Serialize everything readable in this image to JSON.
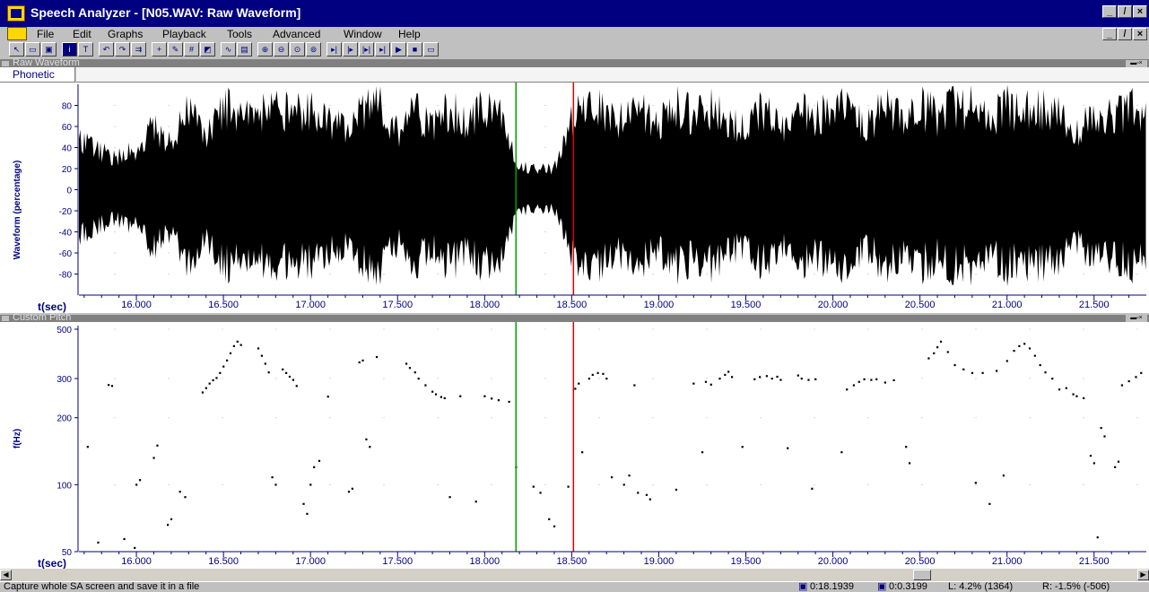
{
  "app": {
    "title": "Speech Analyzer - [N05.WAV: Raw Waveform]"
  },
  "window_controls": [
    "_",
    "̸",
    "×"
  ],
  "menu": [
    "File",
    "Edit",
    "Graphs",
    "Playback",
    "Tools",
    "Advanced",
    "Window",
    "Help"
  ],
  "toolbar_icons": [
    "arrow-tool-icon",
    "open-icon",
    "save-icon",
    "info-icon",
    "text-icon",
    "undo-icon",
    "redo-icon",
    "redo-all-icon",
    "add-segment-icon",
    "edit-segment-icon",
    "add-point-icon",
    "layout-icon",
    "graph-icon",
    "cursor-icon",
    "zoom-in-icon",
    "zoom-out-icon",
    "zoom-fit-icon",
    "zoom-all-icon",
    "play-begin-icon",
    "play-cursor-icon",
    "play-between-icon",
    "play-end-icon",
    "play-icon",
    "stop-icon",
    "loop-icon"
  ],
  "panes": {
    "waveform": {
      "title": "Raw Waveform",
      "phonetic_label": "Phonetic",
      "ylabel": "Waveform (percentage)",
      "yticks": [
        "80",
        "60",
        "40",
        "20",
        "0",
        "-20",
        "-40",
        "-60",
        "-80"
      ],
      "xlabel": "t(sec)",
      "xticks": [
        "16.000",
        "16.500",
        "17.000",
        "17.500",
        "18.000",
        "18.500",
        "19.000",
        "19.500",
        "20.000",
        "20.500",
        "21.000",
        "21.500"
      ]
    },
    "pitch": {
      "title": "Custom Pitch",
      "ylabel": "f(Hz)",
      "yticks": [
        "500",
        "300",
        "200",
        "100",
        "50"
      ],
      "xlabel": "t(sec)",
      "xticks": [
        "16.000",
        "16.500",
        "17.000",
        "17.500",
        "18.000",
        "18.500",
        "19.000",
        "19.500",
        "20.000",
        "20.500",
        "21.000",
        "21.500"
      ]
    }
  },
  "cursors": {
    "start_color": "#00a000",
    "stop_color": "#e00000"
  },
  "status": {
    "message": "Capture whole SA screen and save it in a file",
    "start_time": "0:18.1939",
    "length": "0:0.3199",
    "left": "L: 4.2%  (1364)",
    "right": "R: -1.5%  (-506)"
  },
  "chart_data": [
    {
      "type": "line",
      "title": "",
      "xlabel": "t(sec)",
      "ylabel": "Waveform (percentage)",
      "xlim": [
        15.67,
        21.8
      ],
      "ylim": [
        -100,
        100
      ],
      "grid": false,
      "cursor_times": [
        18.18,
        18.51
      ],
      "envelope": {
        "t": [
          15.7,
          15.8,
          15.9,
          16.0,
          16.1,
          16.2,
          16.3,
          16.4,
          16.5,
          16.6,
          16.7,
          16.8,
          16.9,
          17.0,
          17.1,
          17.2,
          17.3,
          17.4,
          17.5,
          17.6,
          17.7,
          17.8,
          17.9,
          18.0,
          18.1,
          18.18,
          18.3,
          18.4,
          18.51,
          18.6,
          18.7,
          18.8,
          18.9,
          19.0,
          19.1,
          19.2,
          19.3,
          19.4,
          19.5,
          19.6,
          19.7,
          19.8,
          19.9,
          20.0,
          20.1,
          20.2,
          20.3,
          20.4,
          20.5,
          20.6,
          20.7,
          20.8,
          20.9,
          21.0,
          21.1,
          21.2,
          21.3,
          21.4,
          21.5,
          21.6,
          21.7,
          21.78
        ],
        "top": [
          60,
          45,
          40,
          50,
          75,
          60,
          95,
          70,
          100,
          100,
          90,
          100,
          95,
          100,
          85,
          70,
          100,
          100,
          70,
          100,
          75,
          100,
          80,
          100,
          95,
          30,
          25,
          25,
          90,
          100,
          95,
          85,
          100,
          80,
          100,
          90,
          100,
          80,
          75,
          100,
          70,
          100,
          85,
          100,
          95,
          80,
          100,
          85,
          100,
          90,
          100,
          100,
          85,
          100,
          95,
          100,
          90,
          70,
          100,
          85,
          100,
          100
        ]
      }
    },
    {
      "type": "scatter",
      "title": "",
      "xlabel": "t(sec)",
      "ylabel": "f(Hz)",
      "xlim": [
        15.67,
        21.8
      ],
      "ylim": [
        50,
        500
      ],
      "yscale": "log",
      "grid": false,
      "points": [
        [
          15.72,
          148
        ],
        [
          15.78,
          55
        ],
        [
          15.84,
          281
        ],
        [
          15.86,
          278
        ],
        [
          15.93,
          57
        ],
        [
          15.99,
          52
        ],
        [
          16.0,
          100
        ],
        [
          16.02,
          105
        ],
        [
          16.1,
          132
        ],
        [
          16.12,
          150
        ],
        [
          16.18,
          66
        ],
        [
          16.2,
          70
        ],
        [
          16.25,
          93
        ],
        [
          16.28,
          88
        ],
        [
          16.38,
          260
        ],
        [
          16.4,
          272
        ],
        [
          16.42,
          285
        ],
        [
          16.44,
          295
        ],
        [
          16.46,
          302
        ],
        [
          16.48,
          318
        ],
        [
          16.5,
          340
        ],
        [
          16.52,
          362
        ],
        [
          16.54,
          390
        ],
        [
          16.56,
          420
        ],
        [
          16.58,
          440
        ],
        [
          16.6,
          425
        ],
        [
          16.7,
          410
        ],
        [
          16.72,
          380
        ],
        [
          16.74,
          350
        ],
        [
          16.76,
          320
        ],
        [
          16.78,
          108
        ],
        [
          16.8,
          100
        ],
        [
          16.84,
          330
        ],
        [
          16.86,
          318
        ],
        [
          16.88,
          306
        ],
        [
          16.9,
          296
        ],
        [
          16.92,
          278
        ],
        [
          16.96,
          82
        ],
        [
          16.98,
          74
        ],
        [
          17.0,
          100
        ],
        [
          17.02,
          120
        ],
        [
          17.05,
          128
        ],
        [
          17.1,
          249
        ],
        [
          17.22,
          93
        ],
        [
          17.24,
          96
        ],
        [
          17.28,
          355
        ],
        [
          17.3,
          362
        ],
        [
          17.32,
          160
        ],
        [
          17.34,
          148
        ],
        [
          17.38,
          375
        ],
        [
          17.55,
          350
        ],
        [
          17.57,
          335
        ],
        [
          17.6,
          320
        ],
        [
          17.62,
          300
        ],
        [
          17.66,
          280
        ],
        [
          17.7,
          262
        ],
        [
          17.72,
          255
        ],
        [
          17.75,
          248
        ],
        [
          17.77,
          245
        ],
        [
          17.8,
          88
        ],
        [
          17.86,
          250
        ],
        [
          17.95,
          84
        ],
        [
          18.0,
          250
        ],
        [
          18.04,
          244
        ],
        [
          18.08,
          240
        ],
        [
          18.14,
          236
        ],
        [
          18.18,
          120
        ],
        [
          18.28,
          98
        ],
        [
          18.32,
          92
        ],
        [
          18.37,
          70
        ],
        [
          18.4,
          65
        ],
        [
          18.48,
          98
        ],
        [
          18.52,
          270
        ],
        [
          18.54,
          285
        ],
        [
          18.56,
          140
        ],
        [
          18.6,
          300
        ],
        [
          18.62,
          312
        ],
        [
          18.65,
          318
        ],
        [
          18.68,
          315
        ],
        [
          18.7,
          300
        ],
        [
          18.73,
          108
        ],
        [
          18.8,
          100
        ],
        [
          18.83,
          110
        ],
        [
          18.86,
          280
        ],
        [
          18.88,
          92
        ],
        [
          18.93,
          90
        ],
        [
          18.95,
          86
        ],
        [
          19.1,
          95
        ],
        [
          19.2,
          285
        ],
        [
          19.25,
          140
        ],
        [
          19.27,
          290
        ],
        [
          19.3,
          282
        ],
        [
          19.35,
          300
        ],
        [
          19.38,
          312
        ],
        [
          19.4,
          322
        ],
        [
          19.42,
          305
        ],
        [
          19.48,
          148
        ],
        [
          19.55,
          298
        ],
        [
          19.58,
          305
        ],
        [
          19.62,
          308
        ],
        [
          19.65,
          300
        ],
        [
          19.68,
          306
        ],
        [
          19.7,
          296
        ],
        [
          19.74,
          146
        ],
        [
          19.8,
          310
        ],
        [
          19.82,
          300
        ],
        [
          19.86,
          296
        ],
        [
          19.88,
          96
        ],
        [
          19.9,
          298
        ],
        [
          20.05,
          140
        ],
        [
          20.08,
          268
        ],
        [
          20.12,
          280
        ],
        [
          20.15,
          290
        ],
        [
          20.18,
          298
        ],
        [
          20.22,
          296
        ],
        [
          20.25,
          298
        ],
        [
          20.3,
          288
        ],
        [
          20.35,
          295
        ],
        [
          20.42,
          148
        ],
        [
          20.44,
          125
        ],
        [
          20.55,
          370
        ],
        [
          20.58,
          390
        ],
        [
          20.6,
          415
        ],
        [
          20.62,
          440
        ],
        [
          20.66,
          395
        ],
        [
          20.7,
          345
        ],
        [
          20.75,
          330
        ],
        [
          20.8,
          318
        ],
        [
          20.82,
          102
        ],
        [
          20.86,
          318
        ],
        [
          20.9,
          82
        ],
        [
          20.94,
          325
        ],
        [
          20.98,
          110
        ],
        [
          21.0,
          360
        ],
        [
          21.04,
          400
        ],
        [
          21.07,
          420
        ],
        [
          21.1,
          430
        ],
        [
          21.13,
          410
        ],
        [
          21.16,
          380
        ],
        [
          21.19,
          345
        ],
        [
          21.22,
          320
        ],
        [
          21.26,
          300
        ],
        [
          21.3,
          268
        ],
        [
          21.34,
          272
        ],
        [
          21.38,
          255
        ],
        [
          21.4,
          250
        ],
        [
          21.44,
          245
        ],
        [
          21.48,
          135
        ],
        [
          21.5,
          125
        ],
        [
          21.54,
          180
        ],
        [
          21.56,
          165
        ],
        [
          21.52,
          58
        ],
        [
          21.62,
          120
        ],
        [
          21.64,
          127
        ],
        [
          21.66,
          280
        ],
        [
          21.7,
          292
        ],
        [
          21.74,
          305
        ],
        [
          21.77,
          318
        ]
      ]
    }
  ]
}
